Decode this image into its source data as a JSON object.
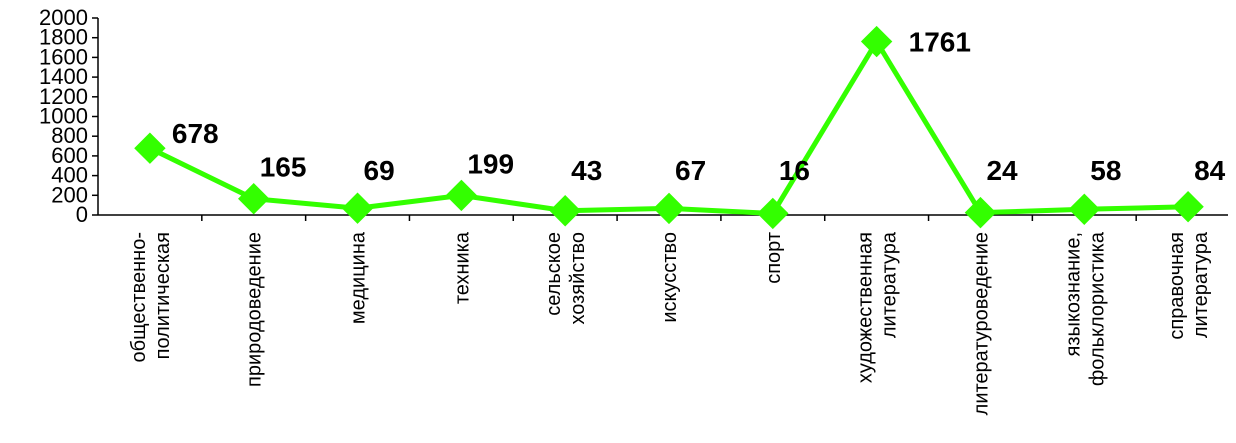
{
  "chart_data": {
    "type": "line",
    "title": "",
    "xlabel": "",
    "ylabel": "",
    "ylim": [
      0,
      2000
    ],
    "yticks": [
      0,
      200,
      400,
      600,
      800,
      1000,
      1200,
      1400,
      1600,
      1800,
      2000
    ],
    "grid": false,
    "legend": "none",
    "categories": [
      [
        "общественно-",
        "политическая"
      ],
      [
        "природоведение"
      ],
      [
        "медицина"
      ],
      [
        "техника"
      ],
      [
        "сельское",
        "хозяйство"
      ],
      [
        "искусство"
      ],
      [
        "спорт"
      ],
      [
        "художественная",
        "литература"
      ],
      [
        "литературоведение"
      ],
      [
        "языкознание,",
        "фольклористика"
      ],
      [
        "справочная",
        "литература"
      ]
    ],
    "series": [
      {
        "values": [
          678,
          165,
          69,
          199,
          43,
          67,
          16,
          1761,
          24,
          58,
          84
        ],
        "color": "#33ff00",
        "marker": "diamond"
      }
    ]
  }
}
